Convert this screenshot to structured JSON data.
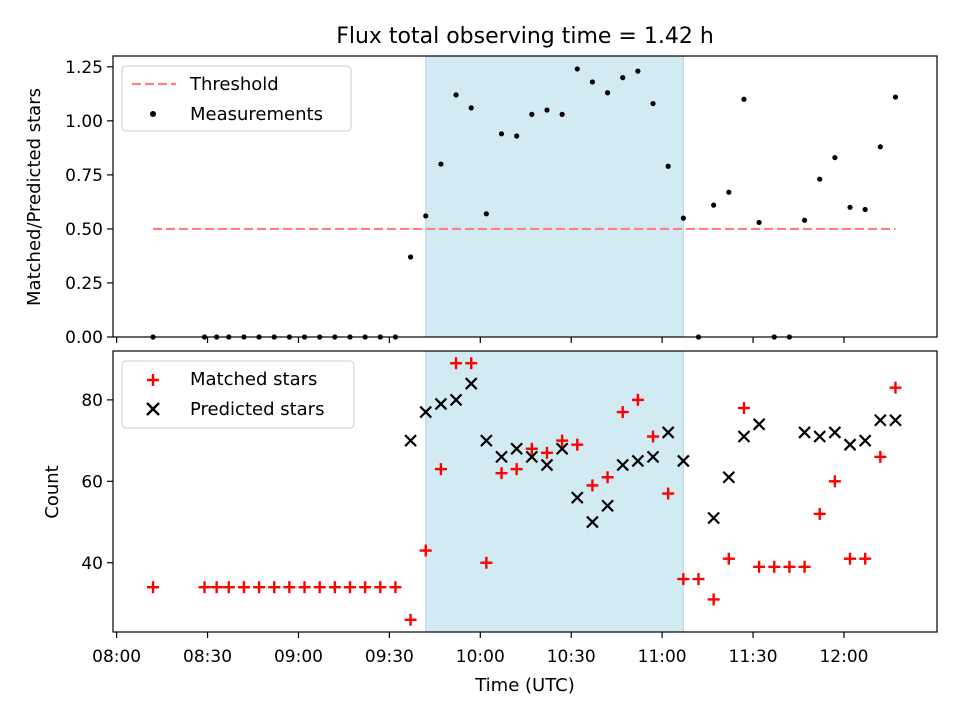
{
  "figure": {
    "title": "Flux total observing time = 1.42 h",
    "xlabel": "Time (UTC)",
    "xticks": [
      "08:00",
      "08:30",
      "09:00",
      "09:30",
      "10:00",
      "10:30",
      "11:00",
      "11:30",
      "12:00"
    ],
    "shaded_region": {
      "start": "09:42",
      "end": "11:07",
      "color": "#add8e6"
    }
  },
  "chart_data": [
    {
      "type": "scatter",
      "ylabel": "Matched/Predicted stars",
      "ylim": [
        0,
        1.3
      ],
      "yticks": [
        "0.00",
        "0.25",
        "0.50",
        "0.75",
        "1.00",
        "1.25"
      ],
      "legend_position": "top-left",
      "threshold": {
        "name": "Threshold",
        "value": 0.5,
        "x_start": "08:12",
        "x_end": "12:17",
        "color": "#ff7f7f"
      },
      "series": [
        {
          "name": "Measurements",
          "marker": "dot",
          "color": "#000000",
          "x": [
            "08:12",
            "08:29",
            "08:33",
            "08:37",
            "08:42",
            "08:47",
            "08:52",
            "08:57",
            "09:02",
            "09:07",
            "09:12",
            "09:17",
            "09:22",
            "09:27",
            "09:32",
            "09:37",
            "09:42",
            "09:47",
            "09:52",
            "09:57",
            "10:02",
            "10:07",
            "10:12",
            "10:17",
            "10:22",
            "10:27",
            "10:32",
            "10:37",
            "10:42",
            "10:47",
            "10:52",
            "10:57",
            "11:02",
            "11:07",
            "11:12",
            "11:17",
            "11:22",
            "11:27",
            "11:32",
            "11:37",
            "11:42",
            "11:47",
            "11:52",
            "11:57",
            "12:02",
            "12:07",
            "12:12",
            "12:17"
          ],
          "y": [
            0.0,
            0.0,
            0.0,
            0.0,
            0.0,
            0.0,
            0.0,
            0.0,
            0.0,
            0.0,
            0.0,
            0.0,
            0.0,
            0.0,
            0.0,
            0.37,
            0.56,
            0.8,
            1.12,
            1.06,
            0.57,
            0.94,
            0.93,
            1.03,
            1.05,
            1.03,
            1.24,
            1.18,
            1.13,
            1.2,
            1.23,
            1.08,
            0.79,
            0.55,
            0.0,
            0.61,
            0.67,
            1.1,
            0.53,
            0.0,
            0.0,
            0.54,
            0.73,
            0.83,
            0.6,
            0.59,
            0.88,
            1.11
          ]
        }
      ]
    },
    {
      "type": "scatter",
      "ylabel": "Count",
      "ylim": [
        23,
        92
      ],
      "yticks": [
        "40",
        "60",
        "80"
      ],
      "legend_position": "top-left",
      "series": [
        {
          "name": "Matched stars",
          "marker": "plus",
          "color": "#ff0000",
          "x": [
            "08:12",
            "08:29",
            "08:33",
            "08:37",
            "08:42",
            "08:47",
            "08:52",
            "08:57",
            "09:02",
            "09:07",
            "09:12",
            "09:17",
            "09:22",
            "09:27",
            "09:32",
            "09:37",
            "09:42",
            "09:47",
            "09:52",
            "09:57",
            "10:02",
            "10:07",
            "10:12",
            "10:17",
            "10:22",
            "10:27",
            "10:32",
            "10:37",
            "10:42",
            "10:47",
            "10:52",
            "10:57",
            "11:02",
            "11:07",
            "11:12",
            "11:17",
            "11:22",
            "11:27",
            "11:32",
            "11:37",
            "11:42",
            "11:47",
            "11:52",
            "11:57",
            "12:02",
            "12:07",
            "12:12",
            "12:17"
          ],
          "y": [
            34,
            34,
            34,
            34,
            34,
            34,
            34,
            34,
            34,
            34,
            34,
            34,
            34,
            34,
            34,
            26,
            43,
            63,
            89,
            89,
            40,
            62,
            63,
            68,
            67,
            70,
            69,
            59,
            61,
            77,
            80,
            71,
            57,
            36,
            36,
            31,
            41,
            78,
            39,
            39,
            39,
            39,
            52,
            60,
            41,
            41,
            66,
            83
          ]
        },
        {
          "name": "Predicted stars",
          "marker": "x",
          "color": "#000000",
          "x": [
            "09:37",
            "09:42",
            "09:47",
            "09:52",
            "09:57",
            "10:02",
            "10:07",
            "10:12",
            "10:17",
            "10:22",
            "10:27",
            "10:32",
            "10:37",
            "10:42",
            "10:47",
            "10:52",
            "10:57",
            "11:02",
            "11:07",
            "11:17",
            "11:22",
            "11:27",
            "11:32",
            "11:47",
            "11:52",
            "11:57",
            "12:02",
            "12:07",
            "12:12",
            "12:17"
          ],
          "y": [
            70,
            77,
            79,
            80,
            84,
            70,
            66,
            68,
            66,
            64,
            68,
            56,
            50,
            54,
            64,
            65,
            66,
            72,
            65,
            51,
            61,
            71,
            74,
            72,
            71,
            72,
            69,
            70,
            75,
            75
          ]
        }
      ]
    }
  ]
}
